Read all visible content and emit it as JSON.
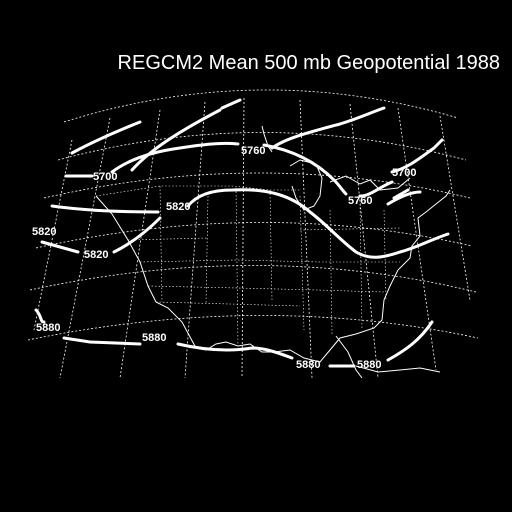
{
  "title": "REGCM2 Mean 500 mb Geopotential 1988",
  "colors": {
    "background": "#000000",
    "lines": "#ffffff"
  },
  "contour_labels": [
    {
      "id": "label-5700-west",
      "text": "5700"
    },
    {
      "id": "label-5760-north",
      "text": "5760"
    },
    {
      "id": "label-5700-east",
      "text": "5700"
    },
    {
      "id": "label-5760-east",
      "text": "5760"
    },
    {
      "id": "label-5820-central",
      "text": "5820"
    },
    {
      "id": "label-5820-west",
      "text": "5820"
    },
    {
      "id": "label-5820-southwest",
      "text": "5820"
    },
    {
      "id": "label-5880-west",
      "text": "5880"
    },
    {
      "id": "label-5880-central",
      "text": "5880"
    },
    {
      "id": "label-5880-gulf",
      "text": "5880"
    },
    {
      "id": "label-5880-east",
      "text": "5880"
    }
  ]
}
